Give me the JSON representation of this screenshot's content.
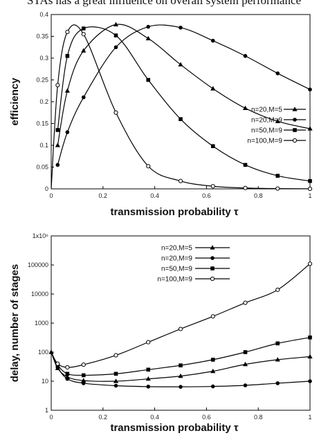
{
  "header": {
    "text": "STAs has a great influence on overall system performance"
  },
  "chart_data": [
    {
      "type": "line",
      "xlabel": "transmission probability τ",
      "ylabel": "efficiency",
      "xlim": [
        0,
        1
      ],
      "ylim": [
        0,
        0.4
      ],
      "x_ticks": [
        "0",
        "0.2",
        "0.4",
        "0.6",
        "0.8",
        "1"
      ],
      "y_ticks": [
        "0",
        "0.05",
        "0.1",
        "0.15",
        "0.2",
        "0.25",
        "0.3",
        "0.35",
        "0.4"
      ],
      "legend": {
        "placement": "right"
      },
      "series": [
        {
          "name": "n=20,M=5",
          "marker": "triangle",
          "x": [
            0.025,
            0.0625,
            0.125,
            0.25,
            0.375,
            0.5,
            0.625,
            0.75,
            0.875,
            1.0
          ],
          "y": [
            0.1,
            0.225,
            0.317,
            0.377,
            0.345,
            0.285,
            0.23,
            0.185,
            0.155,
            0.138
          ]
        },
        {
          "name": "n=20,M=9",
          "marker": "circle-filled",
          "x": [
            0.025,
            0.0625,
            0.125,
            0.25,
            0.375,
            0.5,
            0.625,
            0.75,
            0.875,
            1.0
          ],
          "y": [
            0.055,
            0.13,
            0.21,
            0.325,
            0.372,
            0.37,
            0.34,
            0.305,
            0.265,
            0.228
          ]
        },
        {
          "name": "n=50,M=9",
          "marker": "square",
          "x": [
            0.025,
            0.0625,
            0.125,
            0.25,
            0.375,
            0.5,
            0.625,
            0.75,
            0.875,
            1.0
          ],
          "y": [
            0.135,
            0.305,
            0.368,
            0.352,
            0.25,
            0.16,
            0.098,
            0.055,
            0.03,
            0.018
          ]
        },
        {
          "name": "n=100,M=9",
          "marker": "circle-open",
          "x": [
            0.0,
            0.025,
            0.0625,
            0.125,
            0.25,
            0.375,
            0.5,
            0.625,
            0.75,
            0.875,
            1.0
          ],
          "y": [
            0.0,
            0.238,
            0.36,
            0.355,
            0.175,
            0.052,
            0.018,
            0.006,
            0.002,
            0.0007,
            0.0002
          ]
        }
      ]
    },
    {
      "type": "line",
      "xlabel": "transmission probability τ",
      "ylabel": "delay, number of stages",
      "xlim": [
        0,
        1
      ],
      "ylim": [
        1,
        1000000
      ],
      "y_scale": "log",
      "x_ticks": [
        "0",
        "0.2",
        "0.4",
        "0.6",
        "0.8",
        "1"
      ],
      "y_ticks": [
        "1",
        "10",
        "100",
        "1000",
        "10000",
        "100000",
        "1x10⁶"
      ],
      "legend": {
        "placement": "top-center"
      },
      "series": [
        {
          "name": "n=20,M=5",
          "marker": "triangle",
          "x": [
            0.0,
            0.025,
            0.0625,
            0.125,
            0.25,
            0.375,
            0.5,
            0.625,
            0.75,
            0.875,
            1.0
          ],
          "y": [
            100,
            28,
            14,
            10.5,
            10,
            12,
            15,
            22,
            38,
            55,
            70
          ]
        },
        {
          "name": "n=20,M=9",
          "marker": "circle-filled",
          "x": [
            0.0,
            0.025,
            0.0625,
            0.125,
            0.25,
            0.375,
            0.5,
            0.625,
            0.75,
            0.875,
            1.0
          ],
          "y": [
            100,
            30,
            12,
            8.5,
            7,
            6.5,
            6.4,
            6.6,
            7.2,
            8.5,
            10
          ]
        },
        {
          "name": "n=50,M=9",
          "marker": "square",
          "x": [
            0.0,
            0.025,
            0.0625,
            0.125,
            0.25,
            0.375,
            0.5,
            0.625,
            0.75,
            0.875,
            1.0
          ],
          "y": [
            100,
            36,
            18,
            16,
            18,
            25,
            35,
            55,
            100,
            200,
            320
          ]
        },
        {
          "name": "n=100,M=9",
          "marker": "circle-open",
          "x": [
            0.0,
            0.025,
            0.0625,
            0.125,
            0.25,
            0.375,
            0.5,
            0.625,
            0.75,
            0.875,
            1.0
          ],
          "y": [
            100,
            40,
            30,
            37,
            78,
            220,
            630,
            1700,
            5000,
            14000,
            110000
          ]
        }
      ]
    }
  ]
}
